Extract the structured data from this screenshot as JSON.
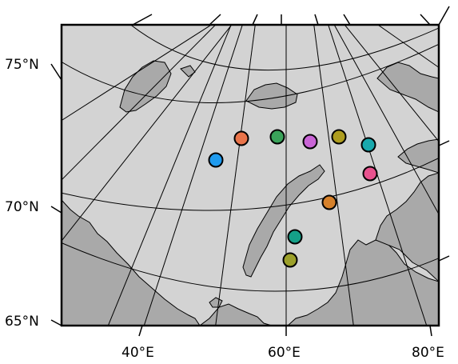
{
  "map": {
    "projection": "polar stereographic",
    "colors": {
      "ocean": "#d3d3d3",
      "land": "#a9a9a9",
      "frame": "#000000",
      "graticule": "#000000"
    },
    "lat_labels": [
      "75°N",
      "70°N",
      "65°N"
    ],
    "lon_labels": [
      "40°E",
      "60°E",
      "80°E"
    ]
  },
  "stations": [
    {
      "color": "#1f9bef"
    },
    {
      "color": "#e9744a"
    },
    {
      "color": "#3aa35a"
    },
    {
      "color": "#c965d6"
    },
    {
      "color": "#ae9d1f"
    },
    {
      "color": "#19a9ad"
    },
    {
      "color": "#e8528e"
    },
    {
      "color": "#d6812b"
    },
    {
      "color": "#14a088"
    },
    {
      "color": "#9ca02a"
    }
  ]
}
